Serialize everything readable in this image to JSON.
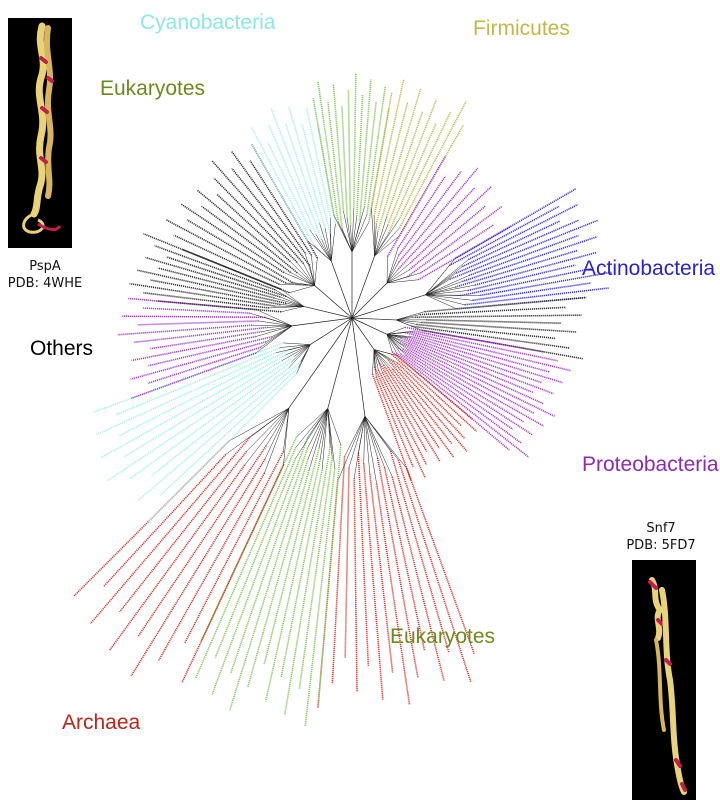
{
  "groups": {
    "cyanobacteria": {
      "label": "Cyanobacteria",
      "color": "#8EE8E2"
    },
    "firmicutes": {
      "label": "Firmicutes",
      "color": "#C4B74A"
    },
    "eukaryotes_top": {
      "label": "Eukaryotes",
      "color": "#6E8A1E"
    },
    "actinobacteria": {
      "label": "Actinobacteria",
      "color": "#2B22C8"
    },
    "others": {
      "label": "Others",
      "color": "#000000"
    },
    "proteobacteria": {
      "label": "Proteobacteria",
      "color": "#8A2BB0"
    },
    "eukaryotes_bottom": {
      "label": "Eukaryotes",
      "color": "#6E8A1E"
    },
    "archaea": {
      "label": "Archaea",
      "color": "#B8261A"
    }
  },
  "structures": {
    "pspa": {
      "name": "PspA",
      "pdb": "PDB: 4WHE"
    },
    "snf7": {
      "name": "Snf7",
      "pdb": "PDB: 5FD7"
    }
  },
  "tree_colors": {
    "branch": "#222222",
    "eukaryote_leaf": "#7DBF4E",
    "cyano_leaf": "#9FEFE6",
    "firmicute_leaf": "#B8B443",
    "actino_leaf": "#2A23D6",
    "proteo_leaf": "#9C2FC8",
    "archaea_leaf": "#D0281E",
    "other_leaf": "#222222"
  }
}
